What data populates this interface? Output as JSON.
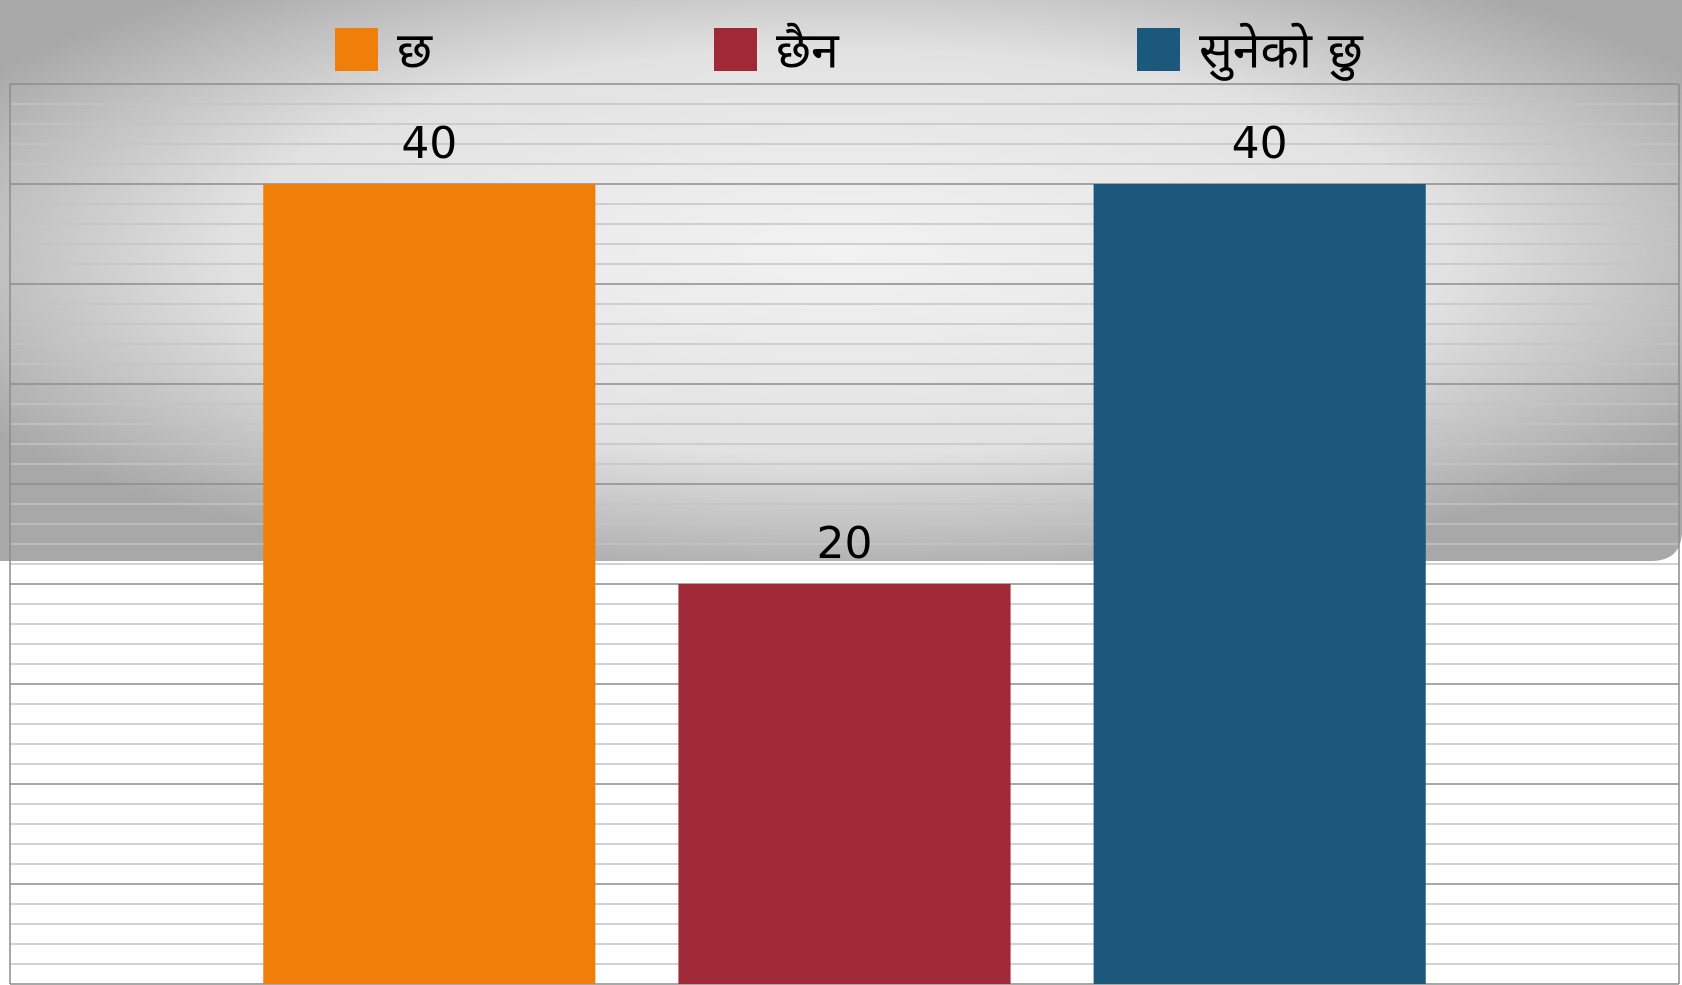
{
  "chart_data": {
    "type": "bar",
    "series": [
      {
        "name": "छ",
        "color": "#f07f09",
        "values": [
          40
        ]
      },
      {
        "name": "छैन",
        "color": "#9f2936",
        "values": [
          20
        ]
      },
      {
        "name": "सुनेको छु",
        "color": "#1b587c",
        "values": [
          40
        ]
      }
    ],
    "ylim": [
      0,
      45
    ],
    "yticks": [
      0,
      5,
      10,
      15,
      20,
      25,
      30,
      35,
      40,
      45
    ],
    "grid": true,
    "legend": "top"
  }
}
